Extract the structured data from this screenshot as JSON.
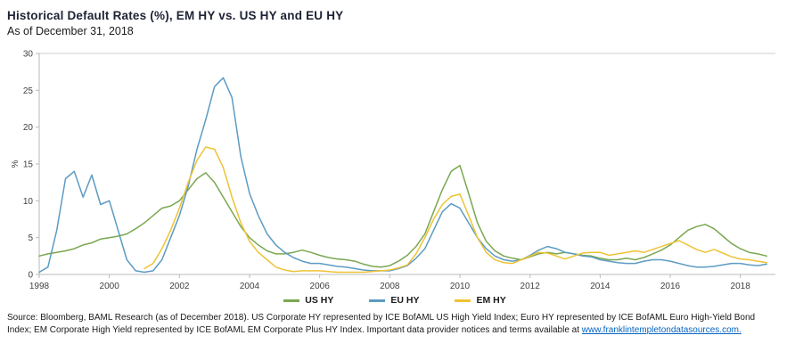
{
  "header": {
    "title": "Historical Default Rates (%), EM HY vs. US HY and EU HY",
    "subtitle": "As of December 31, 2018"
  },
  "chart_data": {
    "type": "line",
    "title": "Historical Default Rates (%), EM HY vs. US HY and EU HY",
    "subtitle": "As of December 31, 2018",
    "xlabel": "",
    "ylabel": "%",
    "xlim": [
      1998,
      2019
    ],
    "ylim": [
      0,
      30
    ],
    "yticks": [
      0,
      5,
      10,
      15,
      20,
      25,
      30
    ],
    "xticks": [
      1998,
      2000,
      2002,
      2004,
      2006,
      2008,
      2010,
      2012,
      2014,
      2016,
      2018
    ],
    "grid": "top-border-only",
    "legend_position": "bottom",
    "x": [
      1998,
      1998.25,
      1998.5,
      1998.75,
      1999,
      1999.25,
      1999.5,
      1999.75,
      2000,
      2000.25,
      2000.5,
      2000.75,
      2001,
      2001.25,
      2001.5,
      2001.75,
      2002,
      2002.25,
      2002.5,
      2002.75,
      2003,
      2003.25,
      2003.5,
      2003.75,
      2004,
      2004.25,
      2004.5,
      2004.75,
      2005,
      2005.25,
      2005.5,
      2005.75,
      2006,
      2006.25,
      2006.5,
      2006.75,
      2007,
      2007.25,
      2007.5,
      2007.75,
      2008,
      2008.25,
      2008.5,
      2008.75,
      2009,
      2009.25,
      2009.5,
      2009.75,
      2010,
      2010.25,
      2010.5,
      2010.75,
      2011,
      2011.25,
      2011.5,
      2011.75,
      2012,
      2012.25,
      2012.5,
      2012.75,
      2013,
      2013.25,
      2013.5,
      2013.75,
      2014,
      2014.25,
      2014.5,
      2014.75,
      2015,
      2015.25,
      2015.5,
      2015.75,
      2016,
      2016.25,
      2016.5,
      2016.75,
      2017,
      2017.25,
      2017.5,
      2017.75,
      2018,
      2018.25,
      2018.5,
      2018.75
    ],
    "series": [
      {
        "name": "US HY",
        "color": "#7aa751",
        "values": [
          2.5,
          2.8,
          3.0,
          3.2,
          3.5,
          4.0,
          4.3,
          4.8,
          5.0,
          5.2,
          5.5,
          6.2,
          7.0,
          8.0,
          9.0,
          9.3,
          10.0,
          11.5,
          13.0,
          13.8,
          12.5,
          10.5,
          8.5,
          6.5,
          5.0,
          4.0,
          3.2,
          2.8,
          2.8,
          3.0,
          3.3,
          3.0,
          2.6,
          2.3,
          2.1,
          2.0,
          1.8,
          1.4,
          1.1,
          1.0,
          1.2,
          1.8,
          2.6,
          3.8,
          5.5,
          8.5,
          11.5,
          14.0,
          14.8,
          11.0,
          7.0,
          4.5,
          3.2,
          2.5,
          2.2,
          2.0,
          2.4,
          2.8,
          3.0,
          2.8,
          3.0,
          2.8,
          2.6,
          2.5,
          2.2,
          2.0,
          2.0,
          2.2,
          2.0,
          2.3,
          2.8,
          3.3,
          4.0,
          5.0,
          6.0,
          6.5,
          6.8,
          6.2,
          5.2,
          4.2,
          3.5,
          3.0,
          2.8,
          2.5
        ]
      },
      {
        "name": "EU HY",
        "color": "#5d9bc3",
        "values": [
          0.3,
          1.0,
          6.0,
          13.0,
          14.0,
          10.5,
          13.5,
          9.5,
          10.0,
          6.0,
          2.0,
          0.5,
          0.3,
          0.5,
          2.0,
          5.0,
          8.0,
          12.0,
          17.0,
          21.0,
          25.5,
          26.7,
          24.0,
          16.0,
          11.0,
          8.0,
          5.5,
          4.0,
          3.0,
          2.3,
          1.8,
          1.5,
          1.5,
          1.3,
          1.1,
          1.0,
          0.8,
          0.6,
          0.5,
          0.5,
          0.5,
          0.8,
          1.2,
          2.2,
          3.5,
          6.0,
          8.5,
          9.6,
          9.0,
          7.0,
          5.0,
          3.5,
          2.5,
          2.0,
          1.8,
          2.0,
          2.6,
          3.3,
          3.8,
          3.5,
          3.0,
          2.8,
          2.5,
          2.4,
          2.0,
          1.8,
          1.6,
          1.5,
          1.5,
          1.8,
          2.0,
          2.0,
          1.8,
          1.5,
          1.2,
          1.0,
          1.0,
          1.1,
          1.3,
          1.5,
          1.5,
          1.3,
          1.2,
          1.4
        ]
      },
      {
        "name": "EM HY",
        "color": "#edc335",
        "values": [
          null,
          null,
          null,
          null,
          null,
          null,
          null,
          null,
          null,
          null,
          null,
          null,
          0.8,
          1.5,
          3.5,
          6.0,
          9.0,
          12.5,
          15.5,
          17.3,
          17.0,
          14.5,
          10.5,
          7.0,
          4.5,
          3.0,
          2.0,
          1.0,
          0.6,
          0.4,
          0.5,
          0.5,
          0.5,
          0.4,
          0.3,
          0.3,
          0.3,
          0.3,
          0.4,
          0.5,
          0.6,
          0.9,
          1.3,
          2.8,
          5.0,
          7.5,
          9.5,
          10.6,
          10.9,
          8.0,
          5.0,
          3.0,
          2.0,
          1.6,
          1.5,
          2.0,
          2.5,
          3.0,
          2.9,
          2.5,
          2.1,
          2.5,
          2.9,
          3.0,
          3.0,
          2.6,
          2.8,
          3.0,
          3.2,
          3.0,
          3.4,
          3.8,
          4.2,
          4.6,
          4.0,
          3.4,
          3.0,
          3.4,
          2.9,
          2.4,
          2.1,
          2.0,
          1.8,
          1.6
        ]
      }
    ]
  },
  "footer": {
    "text_before_link": "Source: Bloomberg, BAML Research (as of December 2018). US Corporate HY represented by ICE BofAML US High Yield Index; Euro HY represented by ICE BofAML Euro High-Yield Bond Index; EM Corporate High Yield represented by ICE BofAML EM Corporate Plus HY Index. Important data provider notices and terms available at ",
    "link": "www.franklintempletondatasources.com."
  }
}
